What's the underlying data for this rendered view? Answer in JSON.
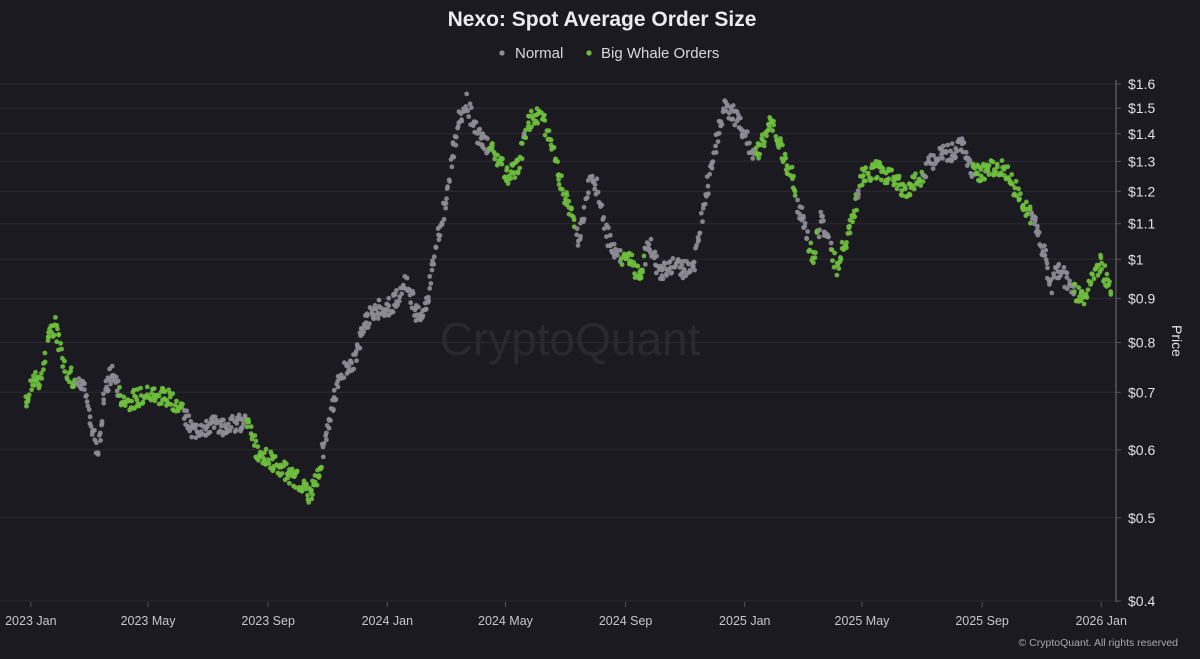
{
  "chart_data": {
    "type": "scatter",
    "title": "Nexo: Spot Average Order Size",
    "ylabel": "Price",
    "xlabel": "",
    "yscale": "log",
    "ylim": [
      0.4,
      1.6
    ],
    "xlim": [
      "2022-12-25",
      "2026-01-12"
    ],
    "y_ticks": [
      "$0.4",
      "$0.5",
      "$0.6",
      "$0.7",
      "$0.8",
      "$0.9",
      "$1",
      "$1.1",
      "$1.2",
      "$1.3",
      "$1.4",
      "$1.5",
      "$1.6"
    ],
    "y_tick_values": [
      0.4,
      0.5,
      0.6,
      0.7,
      0.8,
      0.9,
      1.0,
      1.1,
      1.2,
      1.3,
      1.4,
      1.5,
      1.6
    ],
    "x_ticks": [
      "2023 Jan",
      "2023 May",
      "2023 Sep",
      "2024 Jan",
      "2024 May",
      "2024 Sep",
      "2025 Jan",
      "2025 May",
      "2025 Sep",
      "2026 Jan"
    ],
    "x_tick_dates": [
      "2023-01-01",
      "2023-05-01",
      "2023-09-01",
      "2024-01-01",
      "2024-05-01",
      "2024-09-01",
      "2025-01-01",
      "2025-05-01",
      "2025-09-01",
      "2026-01-01"
    ],
    "legend": [
      {
        "name": "Normal",
        "color": "#8e8c96"
      },
      {
        "name": "Big Whale Orders",
        "color": "#6fbf3e"
      }
    ],
    "legend_position": "top-center",
    "watermark": "CryptoQuant",
    "copyright": "© CryptoQuant. All rights reserved",
    "price_path": [
      [
        "2022-12-25",
        0.68
      ],
      [
        "2023-01-05",
        0.73
      ],
      [
        "2023-01-12",
        0.72
      ],
      [
        "2023-01-20",
        0.82
      ],
      [
        "2023-01-26",
        0.84
      ],
      [
        "2023-02-05",
        0.75
      ],
      [
        "2023-02-15",
        0.72
      ],
      [
        "2023-02-25",
        0.7
      ],
      [
        "2023-03-05",
        0.64
      ],
      [
        "2023-03-10",
        0.59
      ],
      [
        "2023-03-18",
        0.7
      ],
      [
        "2023-03-25",
        0.74
      ],
      [
        "2023-04-05",
        0.68
      ],
      [
        "2023-04-20",
        0.69
      ],
      [
        "2023-05-05",
        0.7
      ],
      [
        "2023-05-20",
        0.69
      ],
      [
        "2023-06-01",
        0.68
      ],
      [
        "2023-06-15",
        0.63
      ],
      [
        "2023-07-05",
        0.64
      ],
      [
        "2023-07-25",
        0.64
      ],
      [
        "2023-08-10",
        0.65
      ],
      [
        "2023-08-20",
        0.6
      ],
      [
        "2023-09-05",
        0.58
      ],
      [
        "2023-09-25",
        0.56
      ],
      [
        "2023-10-05",
        0.55
      ],
      [
        "2023-10-15",
        0.53
      ],
      [
        "2023-10-25",
        0.58
      ],
      [
        "2023-11-05",
        0.67
      ],
      [
        "2023-11-15",
        0.74
      ],
      [
        "2023-11-28",
        0.76
      ],
      [
        "2023-12-10",
        0.85
      ],
      [
        "2023-12-25",
        0.88
      ],
      [
        "2024-01-05",
        0.88
      ],
      [
        "2024-01-20",
        0.95
      ],
      [
        "2024-02-01",
        0.86
      ],
      [
        "2024-02-10",
        0.88
      ],
      [
        "2024-02-20",
        1.04
      ],
      [
        "2024-03-01",
        1.16
      ],
      [
        "2024-03-08",
        1.33
      ],
      [
        "2024-03-15",
        1.45
      ],
      [
        "2024-03-22",
        1.54
      ],
      [
        "2024-04-01",
        1.4
      ],
      [
        "2024-04-15",
        1.35
      ],
      [
        "2024-04-25",
        1.3
      ],
      [
        "2024-05-05",
        1.25
      ],
      [
        "2024-05-15",
        1.29
      ],
      [
        "2024-05-25",
        1.45
      ],
      [
        "2024-06-05",
        1.47
      ],
      [
        "2024-06-15",
        1.4
      ],
      [
        "2024-06-25",
        1.25
      ],
      [
        "2024-07-05",
        1.15
      ],
      [
        "2024-07-15",
        1.05
      ],
      [
        "2024-07-22",
        1.15
      ],
      [
        "2024-07-28",
        1.27
      ],
      [
        "2024-08-05",
        1.18
      ],
      [
        "2024-08-15",
        1.05
      ],
      [
        "2024-08-25",
        1.0
      ],
      [
        "2024-09-05",
        1.0
      ],
      [
        "2024-09-15",
        0.95
      ],
      [
        "2024-09-25",
        1.05
      ],
      [
        "2024-10-05",
        0.97
      ],
      [
        "2024-10-20",
        0.98
      ],
      [
        "2024-11-01",
        0.97
      ],
      [
        "2024-11-10",
        0.99
      ],
      [
        "2024-11-20",
        1.15
      ],
      [
        "2024-12-01",
        1.35
      ],
      [
        "2024-12-10",
        1.5
      ],
      [
        "2024-12-20",
        1.48
      ],
      [
        "2025-01-01",
        1.4
      ],
      [
        "2025-01-10",
        1.3
      ],
      [
        "2025-01-20",
        1.38
      ],
      [
        "2025-01-28",
        1.45
      ],
      [
        "2025-02-08",
        1.34
      ],
      [
        "2025-02-18",
        1.25
      ],
      [
        "2025-02-25",
        1.15
      ],
      [
        "2025-03-05",
        1.08
      ],
      [
        "2025-03-12",
        1.0
      ],
      [
        "2025-03-20",
        1.12
      ],
      [
        "2025-03-28",
        1.05
      ],
      [
        "2025-04-05",
        0.98
      ],
      [
        "2025-04-12",
        1.03
      ],
      [
        "2025-04-20",
        1.1
      ],
      [
        "2025-05-01",
        1.25
      ],
      [
        "2025-05-15",
        1.27
      ],
      [
        "2025-06-01",
        1.25
      ],
      [
        "2025-06-15",
        1.2
      ],
      [
        "2025-07-01",
        1.25
      ],
      [
        "2025-07-15",
        1.32
      ],
      [
        "2025-08-01",
        1.33
      ],
      [
        "2025-08-10",
        1.36
      ],
      [
        "2025-08-20",
        1.28
      ],
      [
        "2025-09-01",
        1.26
      ],
      [
        "2025-09-10",
        1.28
      ],
      [
        "2025-09-25",
        1.27
      ],
      [
        "2025-10-05",
        1.21
      ],
      [
        "2025-10-15",
        1.15
      ],
      [
        "2025-10-25",
        1.1
      ],
      [
        "2025-11-05",
        1.0
      ],
      [
        "2025-11-10",
        0.93
      ],
      [
        "2025-11-18",
        0.97
      ],
      [
        "2025-11-25",
        0.95
      ],
      [
        "2025-12-05",
        0.92
      ],
      [
        "2025-12-15",
        0.9
      ],
      [
        "2025-12-22",
        0.96
      ],
      [
        "2026-01-01",
        0.99
      ],
      [
        "2026-01-10",
        0.92
      ]
    ],
    "whale_periods": [
      [
        "2022-12-25",
        "2023-02-15"
      ],
      [
        "2023-04-01",
        "2023-06-05"
      ],
      [
        "2023-08-10",
        "2023-10-25"
      ],
      [
        "2024-04-15",
        "2024-05-18"
      ],
      [
        "2024-05-22",
        "2024-07-12"
      ],
      [
        "2024-08-28",
        "2024-09-20"
      ],
      [
        "2025-01-12",
        "2025-02-22"
      ],
      [
        "2025-03-08",
        "2025-03-16"
      ],
      [
        "2025-04-01",
        "2025-04-25"
      ],
      [
        "2025-04-28",
        "2025-07-02"
      ],
      [
        "2025-08-22",
        "2025-10-20"
      ],
      [
        "2025-12-05",
        "2026-01-12"
      ]
    ]
  }
}
